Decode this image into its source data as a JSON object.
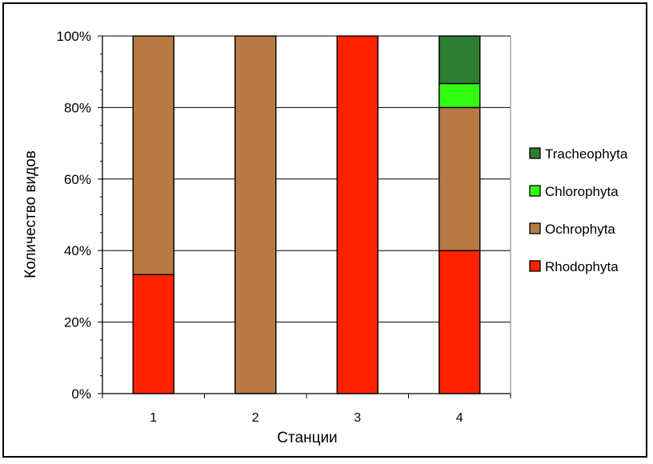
{
  "chart_data": {
    "type": "bar",
    "stacked": true,
    "percent": true,
    "categories": [
      "1",
      "2",
      "3",
      "4"
    ],
    "series": [
      {
        "name": "Rhodophyta",
        "color": "#ff2200",
        "values": [
          33.3,
          0,
          100,
          40
        ]
      },
      {
        "name": "Ochrophyta",
        "color": "#b87a45",
        "values": [
          66.7,
          100,
          0,
          40
        ]
      },
      {
        "name": "Chlorophyta",
        "color": "#33ff11",
        "values": [
          0,
          0,
          0,
          6.7
        ]
      },
      {
        "name": "Tracheophyta",
        "color": "#2e7d32",
        "values": [
          0,
          0,
          0,
          13.3
        ]
      }
    ],
    "legend_order": [
      "Tracheophyta",
      "Chlorophyta",
      "Ochrophyta",
      "Rhodophyta"
    ],
    "legend_position": "right",
    "xlabel": "Станции",
    "ylabel": "Количество видов",
    "ylim": [
      0,
      100
    ],
    "yticks": [
      "0%",
      "20%",
      "40%",
      "60%",
      "80%",
      "100%"
    ],
    "grid": true
  }
}
